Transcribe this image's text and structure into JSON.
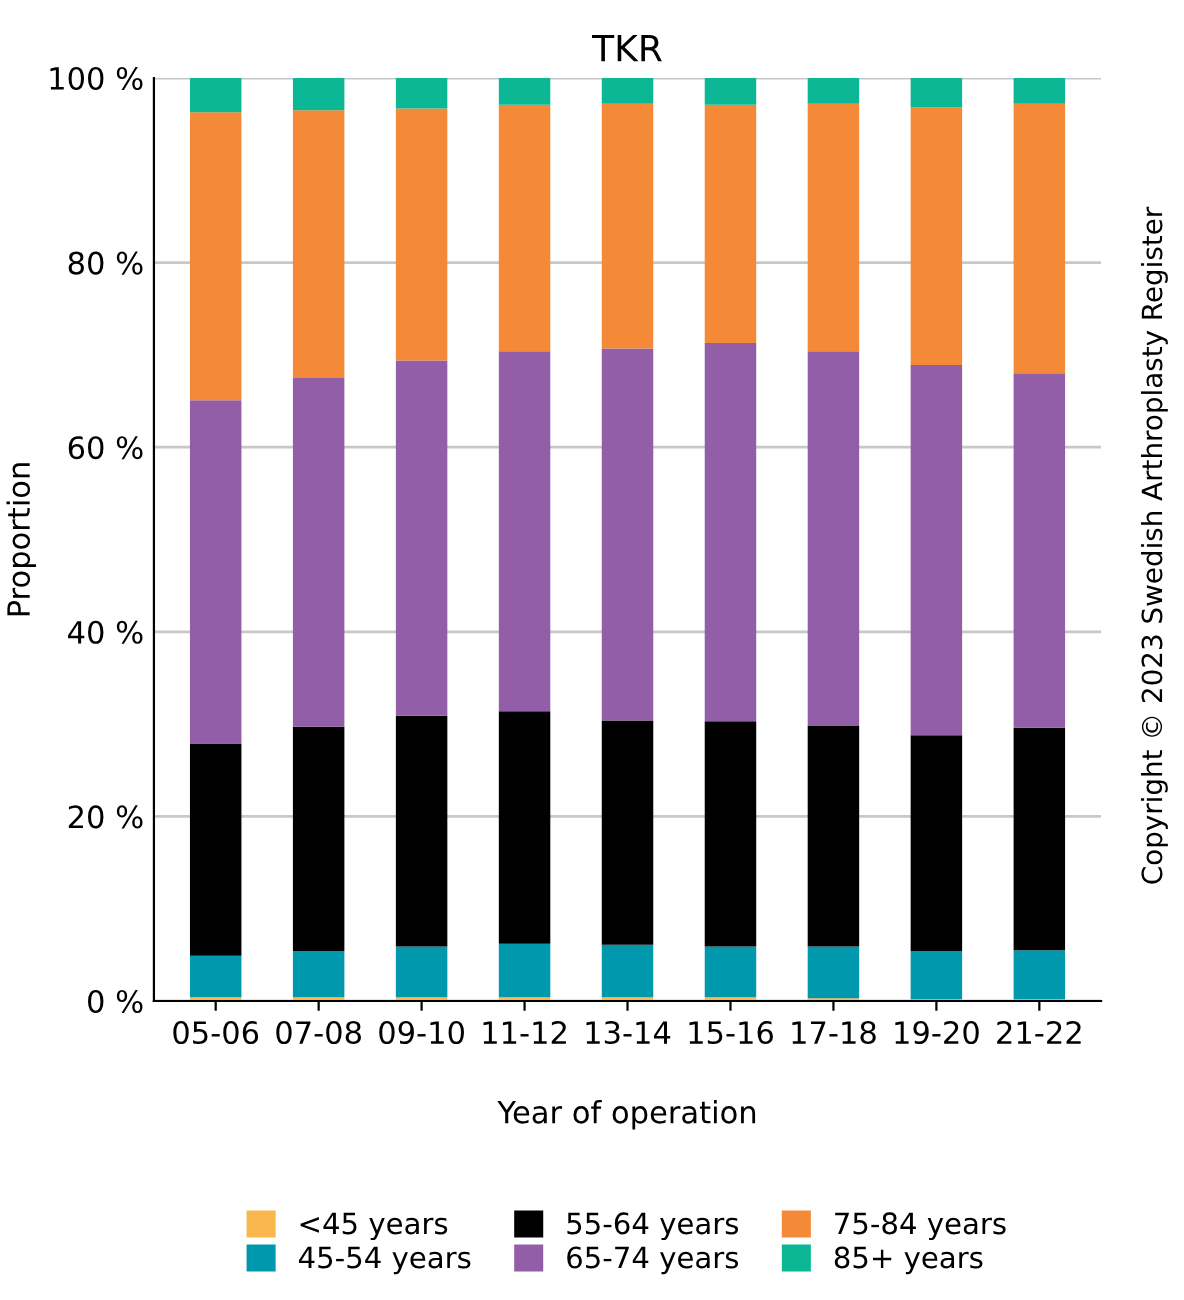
{
  "chart_data": {
    "type": "bar",
    "stacked": true,
    "title": "TKR",
    "xlabel": "Year of operation",
    "ylabel": "Proportion",
    "categories": [
      "05-06",
      "07-08",
      "09-10",
      "11-12",
      "13-14",
      "15-16",
      "17-18",
      "19-20",
      "21-22"
    ],
    "series": [
      {
        "name": "<45 years",
        "color": "#f9b74e",
        "values": [
          0.4,
          0.4,
          0.4,
          0.4,
          0.4,
          0.4,
          0.3,
          0.2,
          0.2
        ]
      },
      {
        "name": "45-54 years",
        "color": "#0098ad",
        "values": [
          4.5,
          5.0,
          5.5,
          5.8,
          5.7,
          5.5,
          5.6,
          5.2,
          5.3
        ]
      },
      {
        "name": "55-64 years",
        "color": "#000000",
        "values": [
          23.0,
          24.3,
          25.0,
          25.2,
          24.3,
          24.4,
          23.9,
          23.4,
          24.1
        ]
      },
      {
        "name": "65-74 years",
        "color": "#935ea8",
        "values": [
          37.2,
          37.8,
          38.5,
          39.0,
          40.3,
          41.0,
          40.6,
          40.1,
          38.4
        ]
      },
      {
        "name": "75-84 years",
        "color": "#f48a37",
        "values": [
          31.2,
          29.0,
          27.3,
          26.7,
          26.5,
          25.8,
          26.8,
          27.9,
          29.2
        ]
      },
      {
        "name": "85+ years",
        "color": "#0bb794",
        "values": [
          3.7,
          3.5,
          3.3,
          2.9,
          2.8,
          2.9,
          2.8,
          3.2,
          2.8
        ]
      }
    ],
    "ylim": [
      0,
      100
    ],
    "yticks": [
      {
        "value": 0,
        "label": "0 %"
      },
      {
        "value": 20,
        "label": "20 %"
      },
      {
        "value": 40,
        "label": "40 %"
      },
      {
        "value": 60,
        "label": "60 %"
      },
      {
        "value": 80,
        "label": "80 %"
      },
      {
        "value": 100,
        "label": "100 %"
      }
    ],
    "grid": "y",
    "legend": "bottom",
    "annotations": [
      "Copyright © 2023 Swedish Arthroplasty Register"
    ]
  }
}
